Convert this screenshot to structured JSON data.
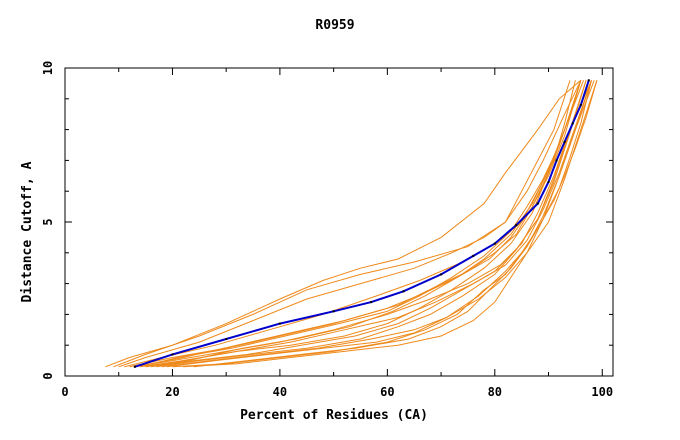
{
  "chart_data": {
    "type": "line",
    "title": "R0959",
    "xlabel": "Percent of Residues (CA)",
    "ylabel": "Distance Cutoff, A",
    "xlim": [
      0,
      102
    ],
    "ylim": [
      0,
      10
    ],
    "x_ticks": [
      0,
      20,
      40,
      60,
      80,
      100
    ],
    "y_ticks": [
      0,
      5,
      10
    ],
    "grid": false,
    "legend": "none",
    "colors": {
      "models": "#ee8a1c",
      "highlight": "#0000cc",
      "highlight_marker": "#000000"
    },
    "highlight_series": {
      "x": [
        13,
        20,
        30,
        40,
        50,
        57,
        63,
        70,
        76,
        80,
        84,
        88,
        90,
        91.5,
        93,
        94.5,
        96,
        97.5
      ],
      "y": [
        0.3,
        0.7,
        1.2,
        1.7,
        2.1,
        2.4,
        2.75,
        3.3,
        3.9,
        4.3,
        4.9,
        5.6,
        6.3,
        7.0,
        7.6,
        8.2,
        8.8,
        9.6
      ]
    },
    "series": [
      {
        "x": [
          7.5,
          12,
          20,
          30,
          40,
          48,
          55,
          62,
          70,
          78,
          82,
          85,
          88,
          92,
          96
        ],
        "y": [
          0.3,
          0.6,
          1.0,
          1.7,
          2.5,
          3.1,
          3.5,
          3.8,
          4.5,
          5.6,
          6.6,
          7.3,
          8.0,
          9.0,
          9.6
        ]
      },
      {
        "x": [
          9,
          15,
          25,
          35,
          45,
          55,
          65,
          75,
          82,
          86,
          89,
          93,
          96
        ],
        "y": [
          0.3,
          0.7,
          1.3,
          2.0,
          2.8,
          3.3,
          3.7,
          4.2,
          5.0,
          6.0,
          7.0,
          8.5,
          9.6
        ]
      },
      {
        "x": [
          10,
          15,
          25,
          35,
          45,
          55,
          65,
          72,
          78,
          82,
          85,
          88,
          91,
          94
        ],
        "y": [
          0.3,
          0.6,
          1.1,
          1.8,
          2.5,
          3.0,
          3.5,
          4.0,
          4.5,
          5.0,
          6.0,
          7.0,
          8.0,
          9.6
        ]
      },
      {
        "x": [
          11,
          18,
          28,
          38,
          48,
          58,
          66,
          74,
          80,
          85,
          88,
          91,
          93,
          95
        ],
        "y": [
          0.3,
          0.6,
          1.0,
          1.5,
          2.0,
          2.6,
          3.1,
          3.7,
          4.3,
          5.0,
          6.0,
          7.0,
          8.2,
          9.6
        ]
      },
      {
        "x": [
          12,
          20,
          30,
          40,
          50,
          60,
          67,
          73,
          79,
          83,
          87,
          90,
          93,
          96
        ],
        "y": [
          0.3,
          0.6,
          0.9,
          1.3,
          1.7,
          2.2,
          2.7,
          3.2,
          3.8,
          4.5,
          5.5,
          6.5,
          7.8,
          9.6
        ]
      },
      {
        "x": [
          13,
          20,
          30,
          40,
          50,
          60,
          68,
          75,
          81,
          85,
          88,
          91,
          94,
          97
        ],
        "y": [
          0.3,
          0.5,
          0.8,
          1.1,
          1.5,
          2.0,
          2.5,
          3.0,
          3.6,
          4.3,
          5.3,
          6.5,
          8.0,
          9.6
        ]
      },
      {
        "x": [
          14,
          22,
          32,
          42,
          52,
          62,
          69,
          76,
          82,
          86,
          89,
          92,
          95,
          98
        ],
        "y": [
          0.3,
          0.5,
          0.8,
          1.1,
          1.5,
          1.9,
          2.4,
          3.0,
          3.6,
          4.4,
          5.4,
          6.6,
          8.1,
          9.6
        ]
      },
      {
        "x": [
          15,
          22,
          32,
          42,
          52,
          60,
          66,
          72,
          78,
          83,
          87,
          90,
          93,
          96
        ],
        "y": [
          0.3,
          0.5,
          0.8,
          1.0,
          1.3,
          1.7,
          2.2,
          2.8,
          3.5,
          4.3,
          5.3,
          6.6,
          8.0,
          9.6
        ]
      },
      {
        "x": [
          16,
          24,
          34,
          44,
          54,
          62,
          68,
          74,
          80,
          84,
          88,
          91,
          94,
          97
        ],
        "y": [
          0.3,
          0.5,
          0.7,
          1.0,
          1.3,
          1.7,
          2.2,
          2.8,
          3.4,
          4.1,
          5.1,
          6.3,
          7.9,
          9.6
        ]
      },
      {
        "x": [
          17,
          25,
          35,
          45,
          55,
          62,
          68,
          74,
          80,
          84,
          88,
          91,
          94,
          98
        ],
        "y": [
          0.3,
          0.5,
          0.7,
          0.9,
          1.2,
          1.6,
          2.0,
          2.6,
          3.3,
          4.1,
          5.1,
          6.4,
          8.0,
          9.6
        ]
      },
      {
        "x": [
          18,
          27,
          37,
          47,
          57,
          65,
          71,
          77,
          82,
          86,
          89,
          92,
          95,
          98.5
        ],
        "y": [
          0.3,
          0.5,
          0.7,
          0.9,
          1.2,
          1.5,
          1.9,
          2.6,
          3.4,
          4.2,
          5.2,
          6.5,
          8.0,
          9.6
        ]
      },
      {
        "x": [
          19,
          28,
          38,
          48,
          58,
          65,
          71,
          77,
          82,
          86,
          90,
          93,
          96,
          99
        ],
        "y": [
          0.3,
          0.5,
          0.7,
          0.9,
          1.1,
          1.4,
          1.9,
          2.5,
          3.2,
          4.0,
          5.0,
          6.4,
          8.0,
          9.6
        ]
      },
      {
        "x": [
          20,
          30,
          40,
          50,
          60,
          67,
          73,
          78,
          82,
          85,
          88,
          91,
          93,
          95,
          97,
          99
        ],
        "y": [
          0.3,
          0.4,
          0.6,
          0.8,
          1.1,
          1.5,
          2.0,
          2.8,
          3.3,
          4.0,
          4.8,
          5.7,
          6.5,
          7.4,
          8.4,
          9.6
        ]
      },
      {
        "x": [
          22,
          32,
          42,
          52,
          62,
          70,
          76,
          80,
          83,
          86,
          89,
          92,
          95,
          98
        ],
        "y": [
          0.3,
          0.4,
          0.6,
          0.8,
          1.0,
          1.3,
          1.8,
          2.4,
          3.2,
          4.0,
          5.1,
          6.5,
          8.0,
          9.6
        ]
      },
      {
        "x": [
          13,
          22,
          32,
          42,
          52,
          62,
          69,
          75,
          80,
          84,
          87,
          90,
          92,
          94,
          96
        ],
        "y": [
          0.3,
          0.6,
          1.0,
          1.4,
          1.8,
          2.3,
          2.9,
          3.4,
          4.0,
          4.6,
          5.5,
          6.6,
          7.5,
          8.5,
          9.6
        ]
      },
      {
        "x": [
          15,
          23,
          33,
          43,
          53,
          61,
          67,
          73,
          78,
          83,
          87,
          90,
          93,
          96.5
        ],
        "y": [
          0.3,
          0.5,
          0.9,
          1.2,
          1.6,
          2.1,
          2.6,
          3.2,
          3.8,
          4.6,
          5.6,
          6.7,
          8.0,
          9.6
        ]
      },
      {
        "x": [
          24,
          34,
          44,
          54,
          64,
          70,
          75,
          79,
          83,
          86,
          89,
          92,
          94,
          96,
          98
        ],
        "y": [
          0.3,
          0.5,
          0.7,
          0.9,
          1.2,
          1.6,
          2.1,
          2.8,
          3.5,
          4.2,
          5.1,
          6.1,
          7.1,
          8.2,
          9.6
        ]
      },
      {
        "x": [
          14,
          21,
          31,
          41,
          51,
          60,
          66,
          72,
          78,
          83,
          86,
          89,
          92,
          94,
          96
        ],
        "y": [
          0.3,
          0.6,
          0.9,
          1.3,
          1.7,
          2.1,
          2.6,
          3.2,
          3.9,
          4.7,
          5.5,
          6.4,
          7.5,
          8.5,
          9.6
        ]
      }
    ]
  }
}
